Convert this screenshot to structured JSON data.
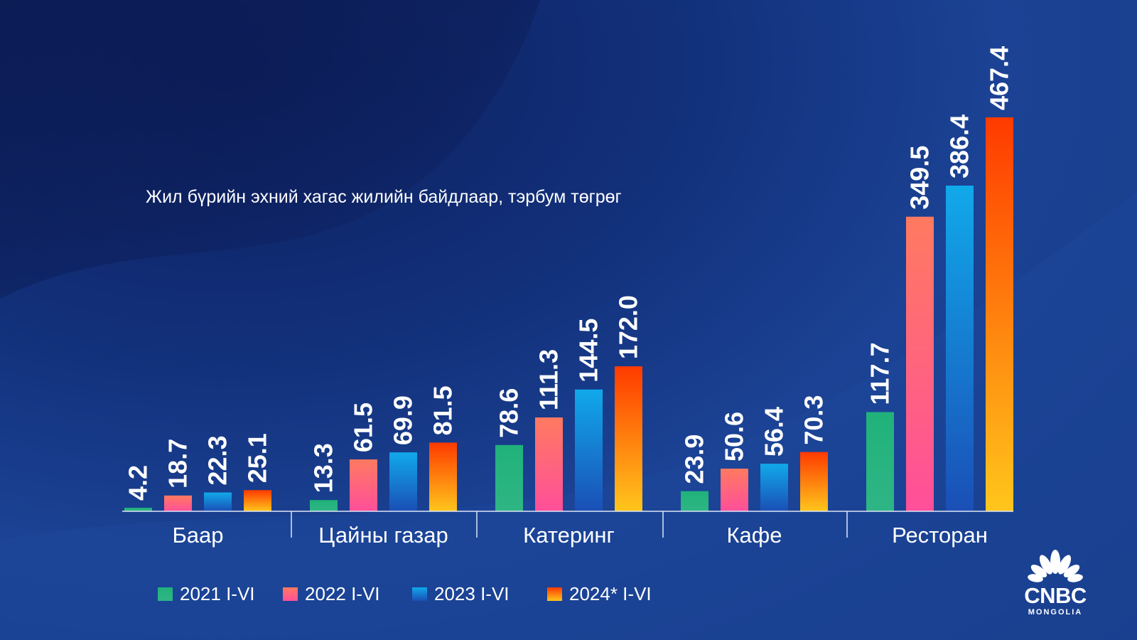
{
  "chart_data": {
    "type": "bar",
    "title": "",
    "subtitle": "Жил бүрийн эхний хагас жилийн байдлаар, тэрбум төгрөг",
    "categories": [
      "Баар",
      "Цайны газар",
      "Катеринг",
      "Кафе",
      "Ресторан"
    ],
    "series": [
      {
        "name": "2021 I-VI",
        "values": [
          4.2,
          13.3,
          78.6,
          23.9,
          117.7
        ],
        "labels": [
          "4.2",
          "13.3",
          "78.6",
          "23.9",
          "117.7"
        ]
      },
      {
        "name": "2022 I-VI",
        "values": [
          18.7,
          61.5,
          111.3,
          50.6,
          349.5
        ],
        "labels": [
          "18.7",
          "61.5",
          "111.3",
          "50.6",
          "349.5"
        ]
      },
      {
        "name": "2023 I-VI",
        "values": [
          22.3,
          69.9,
          144.5,
          56.4,
          386.4
        ],
        "labels": [
          "22.3",
          "69.9",
          "144.5",
          "56.4",
          "386.4"
        ]
      },
      {
        "name": "2024* I-VI",
        "values": [
          25.1,
          81.5,
          172.0,
          70.3,
          467.4
        ],
        "labels": [
          "25.1",
          "81.5",
          "172.0",
          "70.3",
          "467.4"
        ]
      }
    ],
    "ylim": [
      0,
      467.4
    ],
    "xlabel": "",
    "ylabel": "",
    "legend_position": "bottom"
  },
  "colors": {
    "series_1": [
      "#20b27a",
      "#2fb585"
    ],
    "series_2": [
      "#ff7a60",
      "#ff4f9a"
    ],
    "series_3": [
      "#11a9ea",
      "#1a4fb6"
    ],
    "series_4": [
      "#ff3a00",
      "#ffc61c"
    ]
  },
  "logo": {
    "word": "CNBC",
    "sub": "MONGOLIA"
  }
}
